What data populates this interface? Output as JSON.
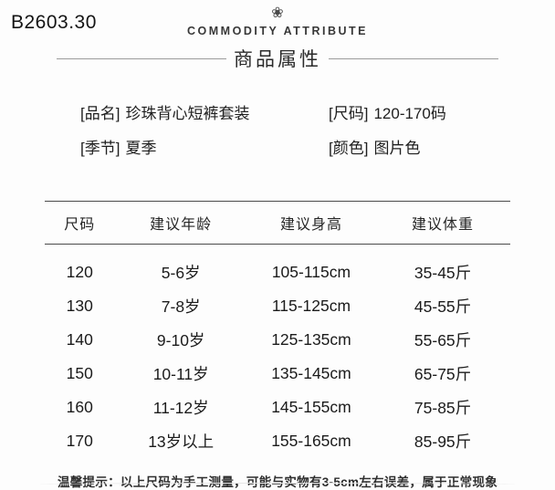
{
  "page": {
    "code": "B2603.30",
    "header": {
      "icon": "❀",
      "title_en": "COMMODITY ATTRIBUTE",
      "title_cn": "商品属性"
    },
    "attributes": [
      {
        "label": "[品名]",
        "value": "珍珠背心短裤套装"
      },
      {
        "label": "[尺码]",
        "value": "120-170码"
      },
      {
        "label": "[季节]",
        "value": "夏季"
      },
      {
        "label": "[颜色]",
        "value": "图片色"
      }
    ],
    "note": "温馨提示：以上尺码为手工测量，可能与实物有3-5cm左右误差，属于正常现象"
  },
  "chart_data": {
    "type": "table",
    "columns": [
      "尺码",
      "建议年龄",
      "建议身高",
      "建议体重"
    ],
    "rows": [
      [
        "120",
        "5-6岁",
        "105-115cm",
        "35-45斤"
      ],
      [
        "130",
        "7-8岁",
        "115-125cm",
        "45-55斤"
      ],
      [
        "140",
        "9-10岁",
        "125-135cm",
        "55-65斤"
      ],
      [
        "150",
        "10-11岁",
        "135-145cm",
        "65-75斤"
      ],
      [
        "160",
        "11-12岁",
        "145-155cm",
        "75-85斤"
      ],
      [
        "170",
        "13岁以上",
        "155-165cm",
        "85-95斤"
      ]
    ]
  },
  "colors": {
    "background": "#fdfdfd",
    "text": "#222222",
    "table_border": "#4a4a4a",
    "header_rule": "#9b9b9b"
  }
}
